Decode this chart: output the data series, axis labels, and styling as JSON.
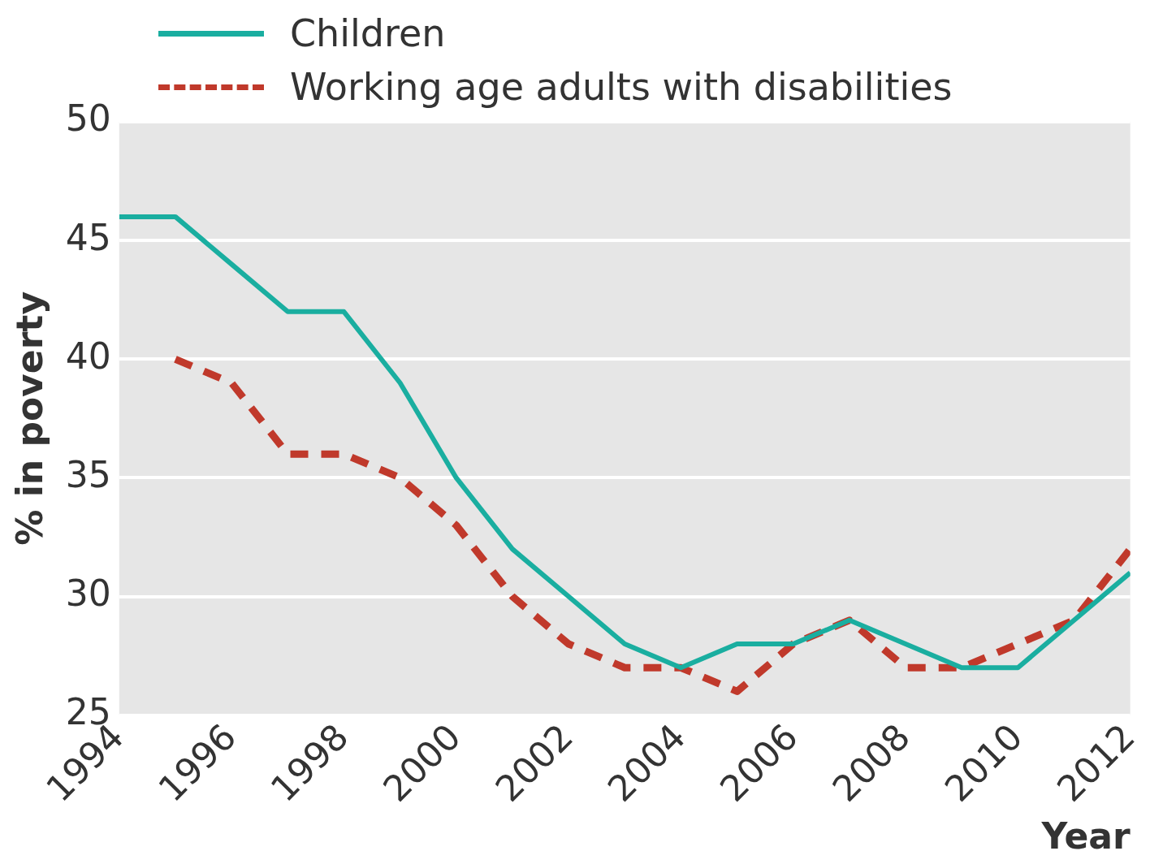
{
  "chart_data": {
    "type": "line",
    "xlabel": "Year",
    "ylabel": "% in poverty",
    "x": [
      1994,
      1995,
      1996,
      1997,
      1998,
      1999,
      2000,
      2001,
      2002,
      2003,
      2004,
      2005,
      2006,
      2007,
      2008,
      2009,
      2010,
      2011,
      2012
    ],
    "series": [
      {
        "name": "Children",
        "color": "#1aaea0",
        "line_style": "solid",
        "values": [
          46,
          46,
          44,
          42,
          42,
          39,
          35,
          32,
          30,
          28,
          27,
          28,
          28,
          29,
          28,
          27,
          27,
          29,
          31
        ]
      },
      {
        "name": "Working age adults with disabilities",
        "color": "#c0392b",
        "line_style": "dashed",
        "values": [
          null,
          40,
          39,
          36,
          36,
          35,
          33,
          30,
          28,
          27,
          27,
          26,
          28,
          29,
          27,
          27,
          28,
          29,
          32
        ]
      }
    ],
    "xlim": [
      1994,
      2012
    ],
    "xticks": [
      1994,
      1996,
      1998,
      2000,
      2002,
      2004,
      2006,
      2008,
      2010,
      2012
    ],
    "ylim": [
      25,
      50
    ],
    "yticks": [
      25,
      30,
      35,
      40,
      45,
      50
    ],
    "grid": "y",
    "legend": "top left",
    "marker": "none"
  }
}
